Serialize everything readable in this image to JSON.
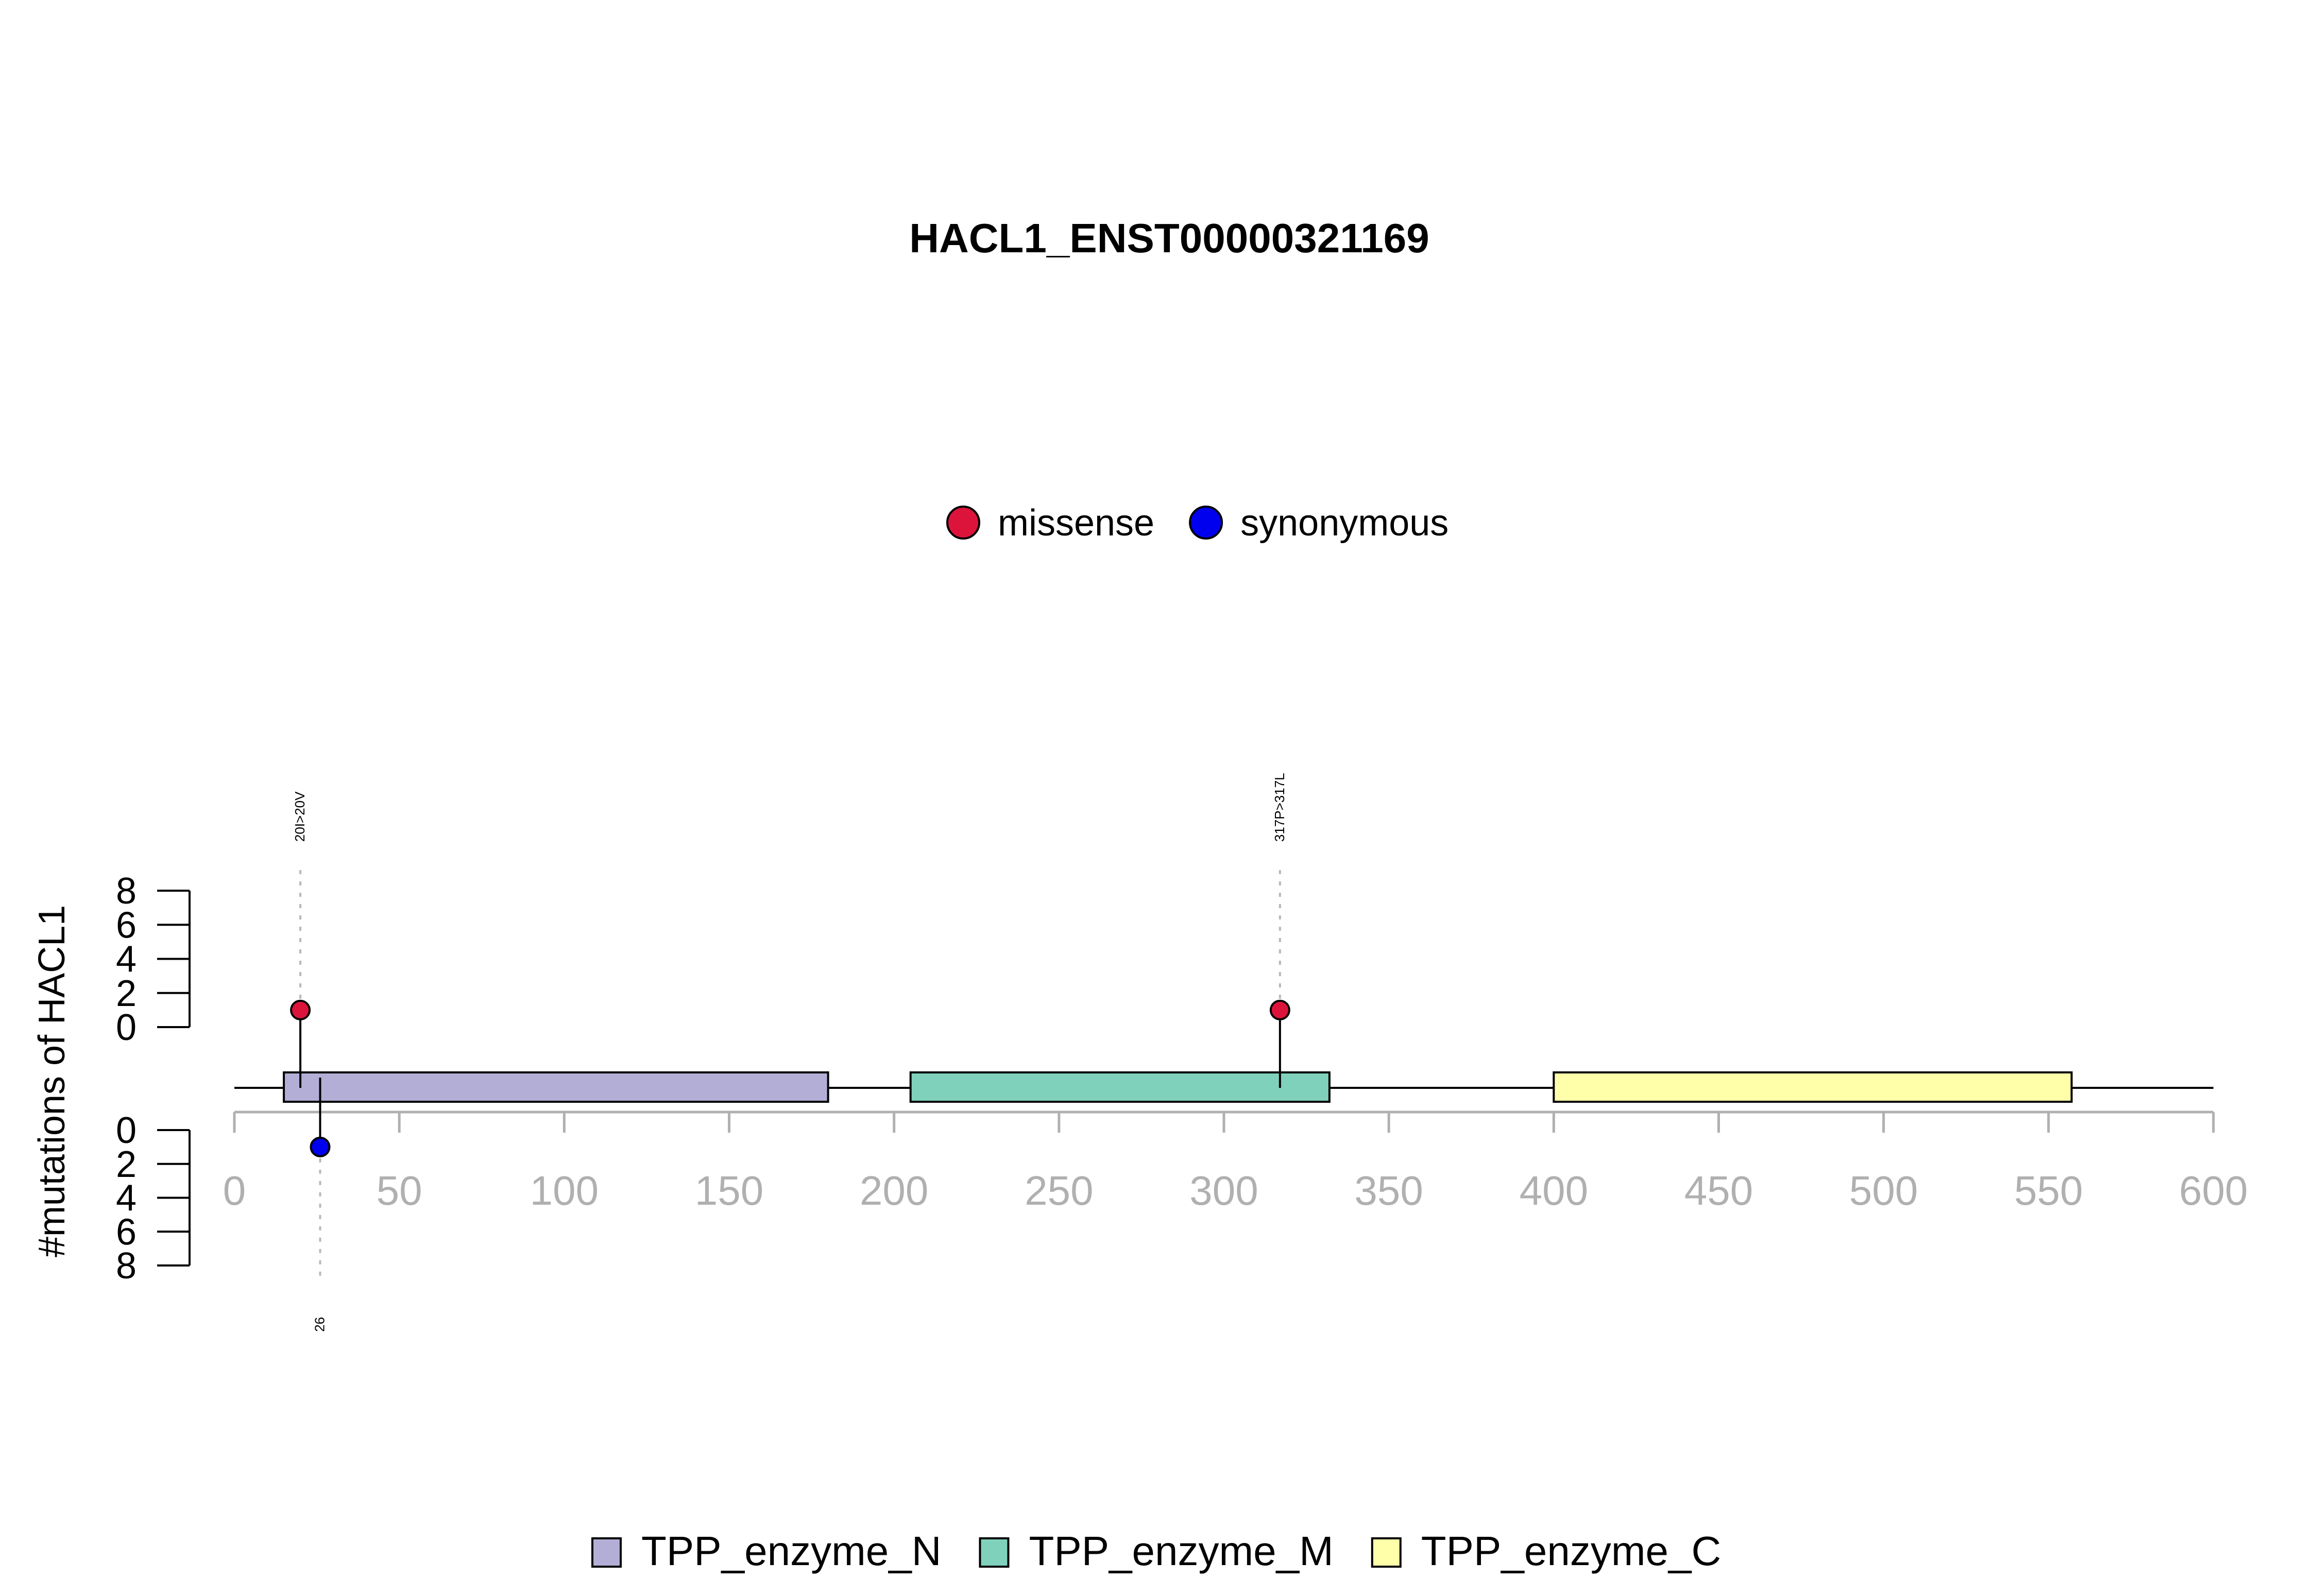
{
  "chart_data": {
    "type": "lollipop",
    "title": "HACL1_ENST00000321169",
    "ylabel": "#mutations of HACL1",
    "xlim": [
      0,
      600
    ],
    "x_ticks": [
      0,
      50,
      100,
      150,
      200,
      250,
      300,
      350,
      400,
      450,
      500,
      550,
      600
    ],
    "y_ticks_top": [
      0,
      2,
      4,
      6,
      8
    ],
    "y_ticks_bottom": [
      0,
      2,
      4,
      6,
      8
    ],
    "ylim": [
      0,
      8
    ],
    "protein_length": 600,
    "mutation_legend": [
      {
        "label": "missense",
        "color": "#dc143c"
      },
      {
        "label": "synonymous",
        "color": "#0000ee"
      }
    ],
    "mutations": [
      {
        "position": 20,
        "count": 1,
        "type": "missense",
        "strand": "top",
        "label": "20I>20V"
      },
      {
        "position": 317,
        "count": 1,
        "type": "missense",
        "strand": "top",
        "label": "317P>317L"
      },
      {
        "position": 26,
        "count": 1,
        "type": "synonymous",
        "strand": "bottom",
        "label": "26"
      }
    ],
    "domains": [
      {
        "name": "TPP_enzyme_N",
        "start": 15,
        "end": 180,
        "color": "#b3aed6"
      },
      {
        "name": "TPP_enzyme_M",
        "start": 205,
        "end": 332,
        "color": "#80d1bc"
      },
      {
        "name": "TPP_enzyme_C",
        "start": 400,
        "end": 557,
        "color": "#ffffaa"
      }
    ]
  }
}
